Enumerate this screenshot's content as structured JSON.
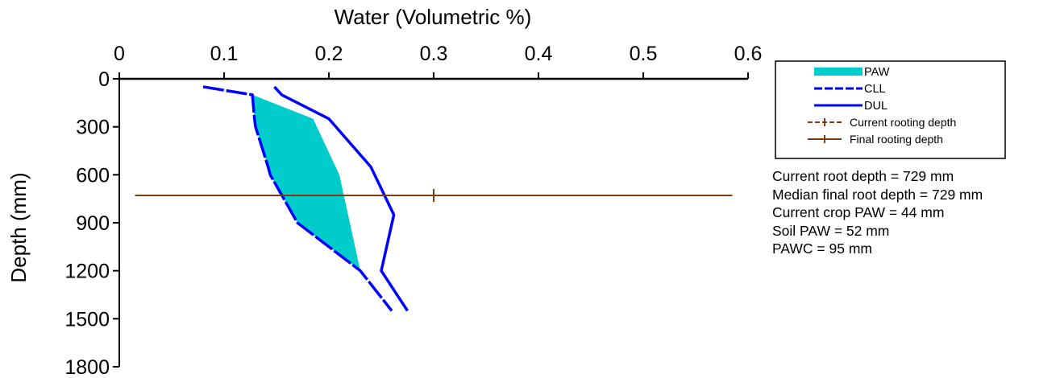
{
  "chart_data": {
    "type": "line",
    "xlabel": "Water (Volumetric %)",
    "ylabel": "Depth (mm)",
    "xlim": [
      0,
      0.6
    ],
    "ylim": [
      0,
      1800
    ],
    "y_inverted": true,
    "x_axis_position": "top",
    "x_ticks": [
      "0",
      "0.1",
      "0.2",
      "0.3",
      "0.4",
      "0.5",
      "0.6"
    ],
    "y_ticks": [
      "0",
      "300",
      "600",
      "900",
      "1200",
      "1500",
      "1800"
    ],
    "grid": false,
    "legend_position": "right",
    "series": [
      {
        "name": "CLL",
        "style": "dashed",
        "color": "#0000ff",
        "x": [
          0.08,
          0.127,
          0.129,
          0.13,
          0.142,
          0.144,
          0.17,
          0.23,
          0.26
        ],
        "y": [
          50,
          100,
          250,
          300,
          550,
          600,
          900,
          1200,
          1450
        ]
      },
      {
        "name": "DUL",
        "style": "solid",
        "color": "#0000ff",
        "x": [
          0.148,
          0.155,
          0.2,
          0.24,
          0.262,
          0.25,
          0.275
        ],
        "y": [
          50,
          100,
          250,
          550,
          850,
          1200,
          1450
        ]
      },
      {
        "name": "Current rooting depth",
        "style": "dashed",
        "color": "#7a3b10",
        "x": [
          0.015,
          0.3,
          0.585
        ],
        "y": [
          729,
          729,
          729
        ],
        "marker_x": 0.3
      },
      {
        "name": "Final rooting depth",
        "style": "solid",
        "color": "#7a3b10",
        "x": [
          0.015,
          0.3,
          0.585
        ],
        "y": [
          729,
          729,
          729
        ],
        "marker_x": 0.3
      }
    ],
    "areas": [
      {
        "name": "PAW",
        "color": "#00cccc",
        "upper_x": [
          0.08,
          0.127,
          0.185,
          0.21,
          0.23
        ],
        "upper_y": [
          50,
          100,
          250,
          600,
          1200
        ],
        "lower_x": [
          0.08,
          0.127,
          0.129,
          0.13,
          0.142,
          0.144,
          0.17,
          0.23
        ],
        "lower_y": [
          50,
          100,
          250,
          300,
          550,
          600,
          900,
          1200
        ]
      }
    ],
    "legend": [
      "PAW",
      "CLL",
      "DUL",
      "Current rooting depth",
      "Final rooting depth"
    ]
  },
  "stats": [
    "Current root depth = 729 mm",
    "Median final root depth = 729 mm",
    "Current crop PAW = 44 mm",
    "Soil PAW = 52 mm",
    "PAWC = 95 mm"
  ]
}
